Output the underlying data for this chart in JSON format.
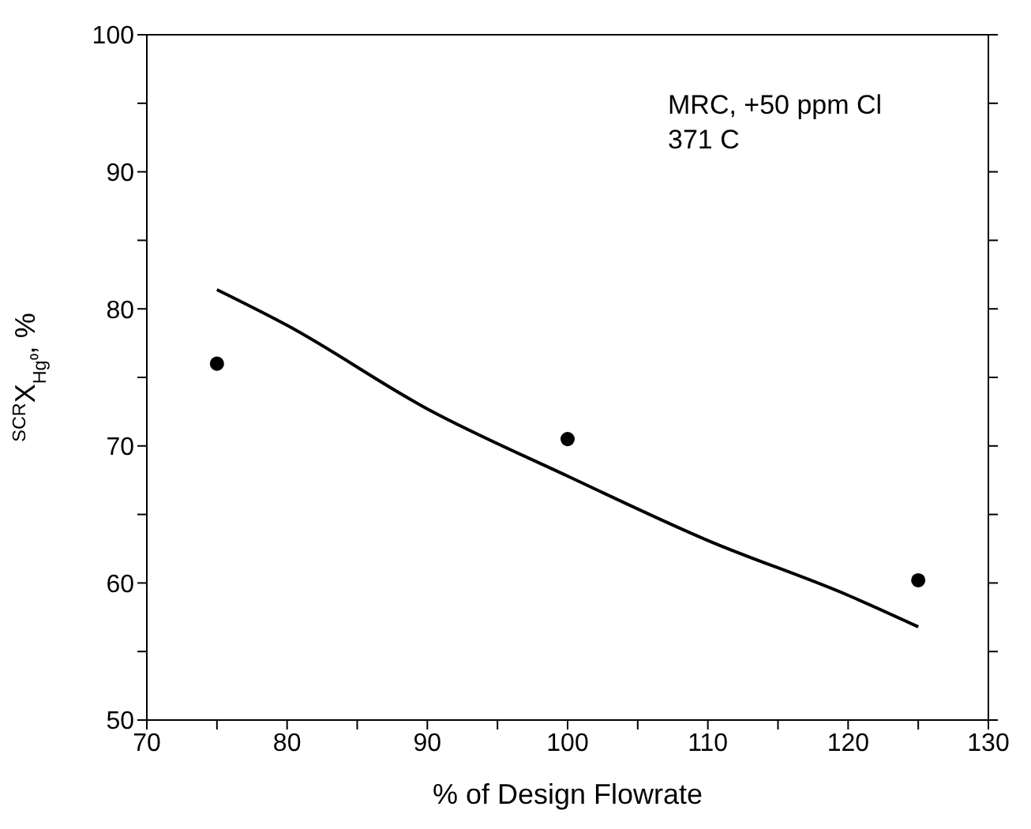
{
  "chart_data": {
    "type": "scatter",
    "xlabel": "% of Design Flowrate",
    "ylabel": "$^{SCR}$X$_{Hg⁰}$, %",
    "annotations": [
      "MRC, +50 ppm Cl\n371 C"
    ],
    "xlim": [
      70,
      130
    ],
    "xticks": [
      70,
      {
        "value": 75,
        "label": null
      },
      80,
      {
        "value": 85,
        "label": null
      },
      90,
      {
        "value": 95,
        "label": null
      },
      100,
      {
        "value": 105,
        "label": null
      },
      110,
      {
        "value": 115,
        "label": null
      },
      120,
      {
        "value": 125,
        "label": null
      },
      130
    ],
    "ylim": [
      50,
      100
    ],
    "yticks": [
      50,
      {
        "value": 55,
        "label": null
      },
      60,
      {
        "value": 65,
        "label": null
      },
      70,
      {
        "value": 75,
        "label": null
      },
      80,
      {
        "value": 85,
        "label": null
      },
      90,
      {
        "value": 95,
        "label": null
      },
      100
    ],
    "grid": false,
    "marker": "circle",
    "series": [
      {
        "color": "#000000",
        "x": [
          75,
          100,
          125
        ],
        "values": [
          76,
          70.5,
          60.2
        ]
      },
      {
        "type": "line",
        "color": "#000000",
        "marker": "none",
        "x": [
          75,
          80,
          90,
          100,
          110,
          120,
          125
        ],
        "values": [
          81.4,
          78.8,
          72.7,
          67.8,
          63.1,
          59.1,
          56.8
        ]
      }
    ]
  }
}
